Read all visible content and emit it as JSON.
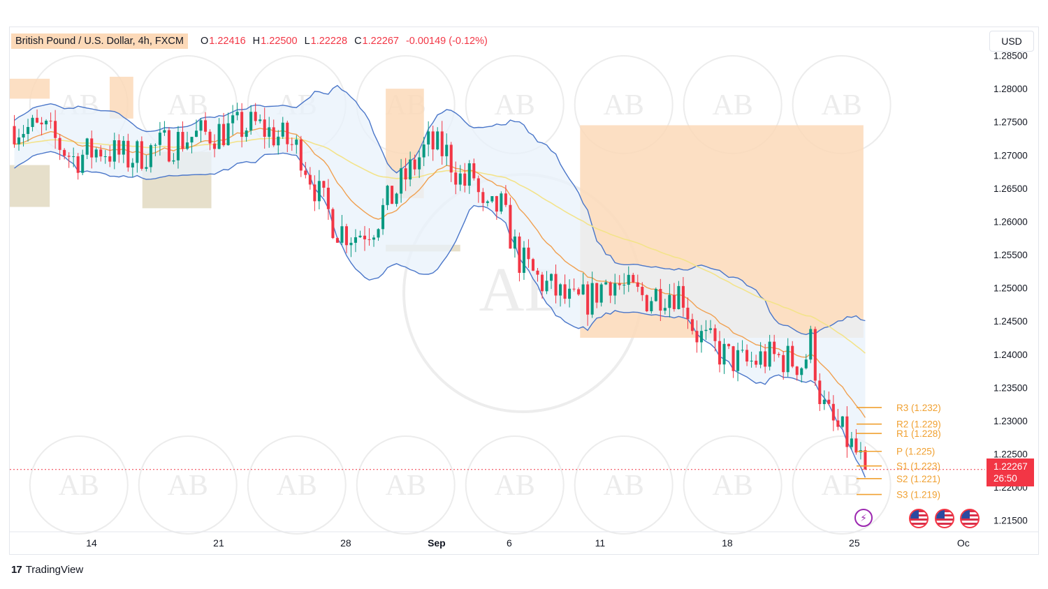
{
  "header": {
    "symbol": "British Pound / U.S. Dollar, 4h, FXCM",
    "open_label": "O",
    "open": "1.22416",
    "high_label": "H",
    "high": "1.22500",
    "low_label": "L",
    "low": "1.22228",
    "close_label": "C",
    "close": "1.22267",
    "change": "-0.00149 (-0.12%)"
  },
  "price_axis": {
    "unit_button": "USD"
  },
  "current_price": {
    "price": "1.22267",
    "countdown": "26:50"
  },
  "footer": {
    "logo_mark": "17",
    "logo_text": "TradingView"
  },
  "watermark": "AB",
  "colors": {
    "up": "#089981",
    "down": "#f23645",
    "band": "#4a76c9",
    "band_fill": "#e8f1fb",
    "ma_fast": "#f0a050",
    "ma_slow": "#f3e38a",
    "supply": "#fcd9b8",
    "demand": "#e3dcc4",
    "pivot": "#f0a030",
    "event_icon": "#9c27b0"
  },
  "icons": [
    "lightning-icon",
    "us-flag-icon"
  ],
  "chart_data": {
    "type": "candlestick",
    "y_ticks": [
      1.285,
      1.28,
      1.275,
      1.27,
      1.265,
      1.26,
      1.255,
      1.25,
      1.245,
      1.24,
      1.235,
      1.23,
      1.225,
      1.22,
      1.215
    ],
    "y_tick_labels": [
      "1.28500",
      "1.28000",
      "1.27500",
      "1.27000",
      "1.26500",
      "1.26000",
      "1.25500",
      "1.25000",
      "1.24500",
      "1.24000",
      "1.23500",
      "1.23000",
      "1.22500",
      "1.22000",
      "1.21500"
    ],
    "ylim": [
      1.2135,
      1.286
    ],
    "x_ticks": [
      {
        "label": "14",
        "day": 0
      },
      {
        "label": "21",
        "day": 7
      },
      {
        "label": "28",
        "day": 14
      },
      {
        "label": "Sep",
        "day": 19
      },
      {
        "label": "6",
        "day": 23
      },
      {
        "label": "11",
        "day": 28
      },
      {
        "label": "18",
        "day": 35
      },
      {
        "label": "25",
        "day": 42
      },
      {
        "label": "Oc",
        "day": 48
      }
    ],
    "xlim": [
      -4.5,
      49.2
    ],
    "trend_anchors": [
      [
        -4.5,
        1.2745
      ],
      [
        -2.5,
        1.2735
      ],
      [
        -1.0,
        1.2695
      ],
      [
        0.5,
        1.271
      ],
      [
        2.0,
        1.2695
      ],
      [
        4.0,
        1.2715
      ],
      [
        5.5,
        1.2728
      ],
      [
        7.0,
        1.2735
      ],
      [
        9.0,
        1.2745
      ],
      [
        10.5,
        1.2725
      ],
      [
        11.5,
        1.2705
      ],
      [
        12.5,
        1.264
      ],
      [
        13.5,
        1.259
      ],
      [
        14.5,
        1.258
      ],
      [
        15.5,
        1.2595
      ],
      [
        16.5,
        1.2635
      ],
      [
        17.5,
        1.2675
      ],
      [
        18.5,
        1.2715
      ],
      [
        19.5,
        1.2705
      ],
      [
        20.5,
        1.2655
      ],
      [
        21.0,
        1.2675
      ],
      [
        21.6,
        1.2605
      ],
      [
        22.5,
        1.2625
      ],
      [
        23.5,
        1.2545
      ],
      [
        24.5,
        1.2515
      ],
      [
        25.5,
        1.2495
      ],
      [
        26.5,
        1.2475
      ],
      [
        27.5,
        1.2485
      ],
      [
        28.5,
        1.2515
      ],
      [
        29.5,
        1.2495
      ],
      [
        30.5,
        1.2485
      ],
      [
        31.5,
        1.2495
      ],
      [
        32.5,
        1.2495
      ],
      [
        33.2,
        1.2435
      ],
      [
        34.0,
        1.2415
      ],
      [
        35.0,
        1.2395
      ],
      [
        36.0,
        1.2385
      ],
      [
        37.0,
        1.2395
      ],
      [
        38.0,
        1.2395
      ],
      [
        39.2,
        1.2385
      ],
      [
        39.6,
        1.242
      ],
      [
        40.2,
        1.2325
      ],
      [
        40.8,
        1.2295
      ],
      [
        41.5,
        1.2275
      ],
      [
        42.0,
        1.2255
      ],
      [
        42.6,
        1.2227
      ]
    ],
    "candle_count": 188,
    "supply_zones": [
      {
        "x1": -4.5,
        "x2": -2.3,
        "top": 1.2815,
        "bottom": 1.2785
      },
      {
        "x1": 1.0,
        "x2": 2.3,
        "top": 1.2818,
        "bottom": 1.2755
      },
      {
        "x1": 16.2,
        "x2": 18.3,
        "top": 1.28,
        "bottom": 1.2635
      },
      {
        "x1": 26.9,
        "x2": 42.5,
        "top": 1.2745,
        "bottom": 1.2425
      }
    ],
    "demand_zones": [
      {
        "x1": -4.5,
        "x2": -2.3,
        "top": 1.2685,
        "bottom": 1.2622
      },
      {
        "x1": 2.8,
        "x2": 6.6,
        "top": 1.2705,
        "bottom": 1.262
      },
      {
        "x1": 16.2,
        "x2": 20.3,
        "top": 1.2565,
        "bottom": 1.2555
      }
    ],
    "pivots": [
      {
        "label": "R3 (1.232)",
        "value": 1.232
      },
      {
        "label": "R2 (1.229)",
        "value": 1.2295
      },
      {
        "label": "R1 (1.228)",
        "value": 1.2281
      },
      {
        "label": "P (1.225)",
        "value": 1.2254
      },
      {
        "label": "S1 (1.223)",
        "value": 1.2232
      },
      {
        "label": "S2 (1.221)",
        "value": 1.2213
      },
      {
        "label": "S3 (1.219)",
        "value": 1.2189
      }
    ],
    "last_price": 1.22267
  }
}
